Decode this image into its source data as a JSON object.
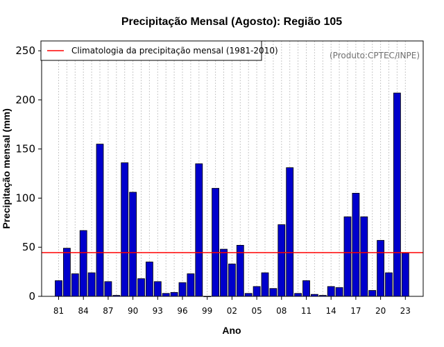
{
  "chart_data": {
    "type": "bar",
    "title": "Precipitação Mensal (Agosto): Região 105",
    "xlabel": "Ano",
    "ylabel": "Precipitação mensal (mm)",
    "source": "(Produto:CPTEC/INPE)",
    "ylim": [
      0,
      260
    ],
    "yticks": [
      0,
      50,
      100,
      150,
      200,
      250
    ],
    "xticks": [
      "81",
      "84",
      "87",
      "90",
      "93",
      "96",
      "99",
      "02",
      "05",
      "08",
      "11",
      "14",
      "17",
      "20",
      "23"
    ],
    "categories": [
      "1981",
      "1982",
      "1983",
      "1984",
      "1985",
      "1986",
      "1987",
      "1988",
      "1989",
      "1990",
      "1991",
      "1992",
      "1993",
      "1994",
      "1995",
      "1996",
      "1997",
      "1998",
      "1999",
      "2000",
      "2001",
      "2002",
      "2003",
      "2004",
      "2005",
      "2006",
      "2007",
      "2008",
      "2009",
      "2010",
      "2011",
      "2012",
      "2013",
      "2014",
      "2015",
      "2016",
      "2017",
      "2018",
      "2019",
      "2020",
      "2021",
      "2022",
      "2023"
    ],
    "values": [
      16,
      49,
      23,
      67,
      24,
      155,
      15,
      1,
      136,
      106,
      18,
      35,
      15,
      3,
      4,
      14,
      23,
      135,
      0,
      110,
      48,
      33,
      52,
      3,
      10,
      24,
      8,
      73,
      131,
      3,
      16,
      2,
      1,
      10,
      9,
      81,
      105,
      81,
      6,
      57,
      24,
      207,
      44
    ],
    "bar_color": "#0000cc",
    "reference_line": {
      "label": "Climatologia da precipitação mensal (1981-2010)",
      "value": 44.5,
      "color": "#ff0000"
    },
    "legend_position": "top-left",
    "grid": true
  }
}
